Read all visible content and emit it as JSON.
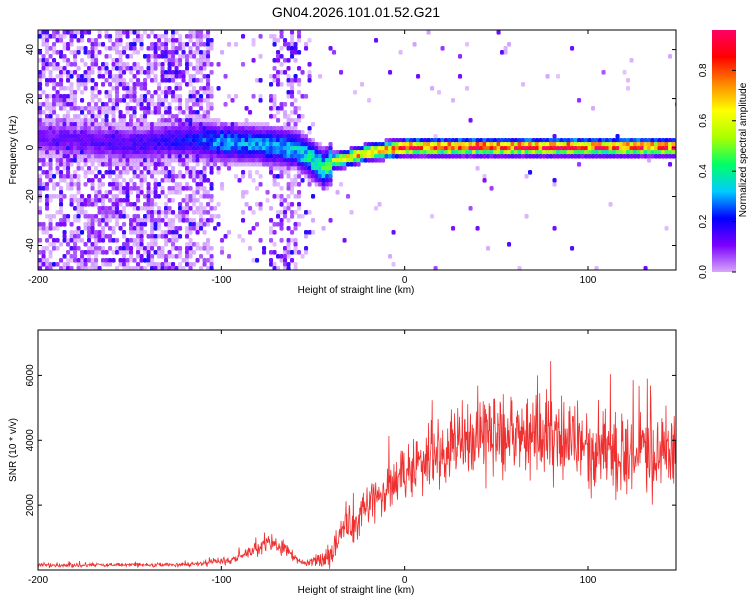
{
  "title": "GN04.2026.101.01.52.G21",
  "chart_data": [
    {
      "type": "heatmap",
      "name": "spectrogram",
      "xlabel": "Height of straight line (km)",
      "ylabel": "Frequency (Hz)",
      "xlim": [
        -200,
        148
      ],
      "ylim": [
        -50,
        48
      ],
      "xticks": [
        -200,
        -100,
        0,
        100
      ],
      "yticks": [
        -40,
        -20,
        0,
        20,
        40
      ],
      "colorbar": {
        "label": "Normalized spectral amplitude",
        "range": [
          0,
          0.96
        ],
        "ticks": [
          0.0,
          0.2,
          0.4,
          0.6,
          0.8
        ],
        "tick_labels": [
          "0.0",
          "0.2",
          "0.4",
          "0.6",
          "0.8"
        ],
        "stops": [
          "#d8a8f8",
          "#7b00ff",
          "#0000ff",
          "#00ccff",
          "#00ff66",
          "#aaff00",
          "#ffff00",
          "#ff8800",
          "#ff0000",
          "#ff0066"
        ]
      },
      "ridge": {
        "description": "frequency of peak amplitude vs height",
        "x": [
          -200,
          -150,
          -120,
          -100,
          -80,
          -60,
          -50,
          -45,
          -40,
          -30,
          -20,
          -10,
          0,
          20,
          50,
          80,
          100,
          120,
          148
        ],
        "y": [
          5,
          2,
          4,
          3,
          2,
          0,
          -5,
          -8,
          -5,
          -3,
          -1,
          0,
          1,
          1,
          1,
          1,
          1,
          1,
          1
        ],
        "amplitude": [
          0.12,
          0.15,
          0.2,
          0.3,
          0.3,
          0.35,
          0.4,
          0.45,
          0.55,
          0.7,
          0.75,
          0.8,
          0.85,
          0.88,
          0.9,
          0.9,
          0.88,
          0.87,
          0.85
        ]
      }
    },
    {
      "type": "line",
      "name": "snr",
      "xlabel": "Height of straight line (km)",
      "ylabel": "SNR (10 * v/v)",
      "xlim": [
        -200,
        148
      ],
      "ylim": [
        0,
        7400
      ],
      "xticks": [
        -200,
        -100,
        0,
        100
      ],
      "yticks": [
        2000,
        4000,
        6000
      ],
      "color": "#ee3030",
      "envelope": {
        "description": "approximate mean SNR and fluctuation amplitude vs height",
        "x": [
          -200,
          -120,
          -95,
          -80,
          -72,
          -62,
          -55,
          -40,
          -35,
          -20,
          -10,
          0,
          10,
          20,
          40,
          60,
          80,
          100,
          120,
          140,
          148
        ],
        "mean": [
          150,
          160,
          300,
          650,
          850,
          500,
          200,
          400,
          1200,
          2000,
          2400,
          2900,
          3300,
          3700,
          4100,
          4200,
          4000,
          3700,
          3500,
          3600,
          3700
        ],
        "spread": [
          120,
          120,
          200,
          400,
          500,
          400,
          150,
          500,
          1200,
          1200,
          1500,
          1600,
          1800,
          2000,
          2200,
          2200,
          2200,
          2200,
          2200,
          2200,
          2200
        ]
      }
    }
  ]
}
